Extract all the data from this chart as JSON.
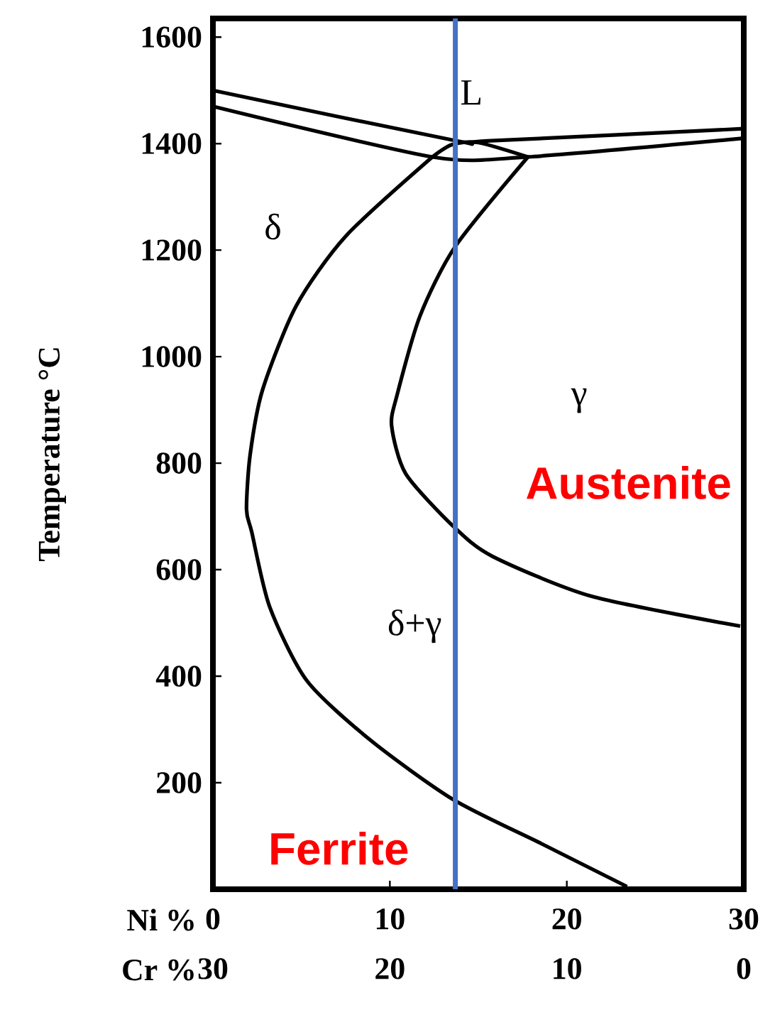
{
  "chart_data": {
    "type": "line",
    "xlabel": "Ni %",
    "x2label": "Cr %",
    "ylabel": "Temperature °C",
    "xlim": [
      0,
      30
    ],
    "xticks": [
      0,
      10,
      20,
      30
    ],
    "x2lim": [
      30,
      0
    ],
    "x2ticks": [
      30,
      20,
      10,
      0
    ],
    "ylim": [
      0,
      1635
    ],
    "yticks": [
      200,
      400,
      600,
      800,
      1000,
      1200,
      1400,
      1600
    ],
    "series": [
      {
        "color": "#000000",
        "x": [
          0,
          13.8,
          15.5,
          30
        ],
        "values": [
          1500,
          1405,
          1405,
          1428
        ]
      },
      {
        "color": "#000000",
        "x": [
          0,
          12.4,
          17.8,
          30
        ],
        "values": [
          1470,
          1375,
          1375,
          1410
        ]
      },
      {
        "color": "#000000",
        "x": [
          12.4,
          13.5,
          15,
          17.8
        ],
        "values": [
          1375,
          1398,
          1402,
          1375
        ]
      },
      {
        "color": "#000000",
        "x": [
          12.4,
          7.5,
          4.7,
          2.8,
          2.1,
          1.9,
          2.2,
          3.2,
          5.3,
          8.9,
          13.6,
          18.6,
          23.4
        ],
        "values": [
          1375,
          1226,
          1095,
          937,
          815,
          713,
          670,
          531,
          392,
          280,
          168,
          85,
          5
        ]
      },
      {
        "color": "#000000",
        "x": [
          17.8,
          13.7,
          11.7,
          10.4,
          10.1,
          10.9,
          13.6,
          15.8,
          21.4,
          29.8
        ],
        "values": [
          1375,
          1207,
          1076,
          927,
          870,
          780,
          681,
          625,
          550,
          494
        ]
      }
    ],
    "ref_lines": [
      {
        "axis": "x",
        "value": 13.7,
        "color": "#4472c4"
      }
    ],
    "annotations": [
      "L",
      "δ",
      "γ",
      "δ+γ",
      "Austenite",
      "Ferrite"
    ],
    "grid": false
  }
}
